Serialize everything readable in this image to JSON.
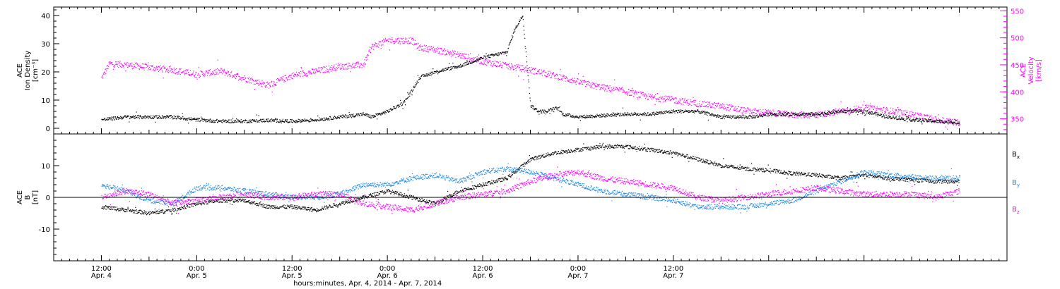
{
  "chart_data": [
    {
      "type": "scatter",
      "panel": "top",
      "ylabel": [
        "ACE",
        "Ion Density",
        "[cm⁻³]"
      ],
      "y2label": [
        "ACE",
        "Velocity",
        "[km/s]"
      ],
      "ylim": [
        -2,
        43
      ],
      "y2lim": [
        322,
        557
      ],
      "yticks": [
        0,
        10,
        20,
        30,
        40
      ],
      "y2ticks": [
        350,
        400,
        450,
        500,
        550
      ],
      "colors": {
        "density": "#000000",
        "velocity": "#ff00ff"
      },
      "series": [
        {
          "name": "Ion Density",
          "axis": "left",
          "color": "#000000",
          "x": [
            0,
            3,
            6,
            9,
            12,
            15,
            18,
            21,
            24,
            27,
            30,
            33,
            34,
            36,
            38,
            39,
            40,
            42,
            45,
            48,
            51,
            52,
            53,
            54,
            55,
            56,
            57,
            57.5,
            58,
            60,
            63,
            66,
            69,
            72,
            75,
            78,
            81,
            82,
            84,
            87,
            90,
            93,
            96,
            99,
            102,
            105,
            108
          ],
          "y": [
            3,
            4,
            4,
            4,
            3,
            2.5,
            2.5,
            2.8,
            2.5,
            3,
            4,
            5,
            4,
            6,
            9,
            13,
            18,
            20,
            22,
            25,
            27,
            35,
            40,
            8,
            6,
            6,
            7,
            7,
            5,
            4,
            4.5,
            5,
            5,
            6,
            6,
            4,
            4,
            4,
            5,
            5,
            5,
            6,
            6,
            4,
            3,
            2.5,
            2
          ]
        },
        {
          "name": "Velocity",
          "axis": "right",
          "color": "#ff00ff",
          "x": [
            0,
            1,
            3,
            6,
            9,
            12,
            15,
            18,
            21,
            24,
            27,
            30,
            33,
            34,
            36,
            39,
            40,
            42,
            45,
            48,
            51,
            54,
            57,
            60,
            63,
            66,
            69,
            72,
            75,
            78,
            80,
            81,
            84,
            87,
            90,
            93,
            96,
            99,
            102,
            105,
            108
          ],
          "y": [
            425,
            452,
            450,
            445,
            440,
            432,
            438,
            425,
            412,
            430,
            438,
            447,
            450,
            483,
            495,
            495,
            482,
            478,
            468,
            456,
            448,
            440,
            430,
            418,
            408,
            400,
            390,
            385,
            378,
            373,
            368,
            365,
            361,
            357,
            357,
            364,
            370,
            365,
            358,
            348,
            343
          ]
        }
      ]
    },
    {
      "type": "scatter",
      "panel": "bottom",
      "ylabel": [
        "ACE",
        "B",
        "[nT]"
      ],
      "ylim": [
        -20,
        20
      ],
      "yticks": [
        -10,
        0,
        10
      ],
      "zero_line": true,
      "series": [
        {
          "name": "Bₓ",
          "color": "#000000",
          "x": [
            0,
            3,
            6,
            9,
            12,
            15,
            18,
            21,
            24,
            27,
            30,
            33,
            36,
            39,
            42,
            45,
            48,
            51,
            54,
            57,
            60,
            63,
            66,
            69,
            72,
            75,
            78,
            81,
            84,
            87,
            90,
            93,
            96,
            99,
            102,
            105,
            108
          ],
          "y": [
            -3,
            -4,
            -5,
            -4,
            -2,
            -1,
            -1,
            -3,
            -3,
            -4,
            -2,
            0,
            2,
            0,
            -2,
            2,
            4,
            6,
            12,
            14,
            15,
            16,
            16,
            15,
            14,
            12,
            10,
            9,
            8.5,
            7.5,
            7,
            6,
            7,
            6,
            5.5,
            5,
            5
          ]
        },
        {
          "name": "Bᵧ",
          "color": "#1e88e5",
          "x": [
            0,
            3,
            6,
            9,
            12,
            15,
            18,
            21,
            24,
            27,
            30,
            33,
            36,
            39,
            42,
            45,
            48,
            51,
            54,
            57,
            60,
            63,
            66,
            69,
            72,
            75,
            78,
            81,
            84,
            87,
            90,
            93,
            96,
            99,
            102,
            105,
            108
          ],
          "y": [
            4,
            2,
            -1,
            -2,
            3,
            3,
            2,
            1,
            0,
            0,
            1,
            4,
            4,
            6,
            7,
            5,
            8,
            9,
            8,
            6,
            4,
            2,
            1,
            0,
            -1,
            -3,
            -3,
            -3,
            -2,
            -1,
            2,
            5,
            8,
            7,
            6.5,
            6,
            6
          ]
        },
        {
          "name": "B_z",
          "color": "#ff00ff",
          "x": [
            0,
            3,
            6,
            9,
            12,
            15,
            18,
            21,
            24,
            27,
            30,
            33,
            36,
            39,
            42,
            45,
            48,
            51,
            54,
            57,
            60,
            63,
            66,
            69,
            72,
            75,
            78,
            81,
            84,
            87,
            90,
            93,
            96,
            99,
            102,
            105,
            108
          ],
          "y": [
            0,
            2,
            1,
            -2,
            -1,
            0,
            1,
            0,
            0,
            1,
            1,
            -2,
            -3,
            -4,
            -2,
            0,
            1,
            2,
            5,
            7,
            8,
            6,
            5,
            4,
            3,
            0,
            -1,
            0,
            1,
            2,
            3,
            2,
            1,
            1,
            1,
            0,
            2
          ]
        }
      ]
    }
  ],
  "x_axis": {
    "range_hours": [
      -6,
      114
    ],
    "major_ticks": [
      {
        "h": 0,
        "time": "12:00",
        "date": "Apr. 4"
      },
      {
        "h": 12,
        "time": "0:00",
        "date": "Apr. 5"
      },
      {
        "h": 24,
        "time": "12:00",
        "date": "Apr. 5"
      },
      {
        "h": 36,
        "time": "0:00",
        "date": "Apr. 6"
      },
      {
        "h": 48,
        "time": "12:00",
        "date": "Apr. 6"
      },
      {
        "h": 60,
        "time": "0:00",
        "date": "Apr. 7"
      },
      {
        "h": 72,
        "time": "12:00",
        "date": "Apr. 7"
      }
    ],
    "title": "hours:minutes, Apr.  4, 2014 - Apr.  7, 2014"
  },
  "legend": [
    {
      "label": "B",
      "sub": "x",
      "color": "#000000"
    },
    {
      "label": "B",
      "sub": "y",
      "color": "#1e88e5"
    },
    {
      "label": "B",
      "sub": "z",
      "color": "#ff00ff"
    }
  ]
}
